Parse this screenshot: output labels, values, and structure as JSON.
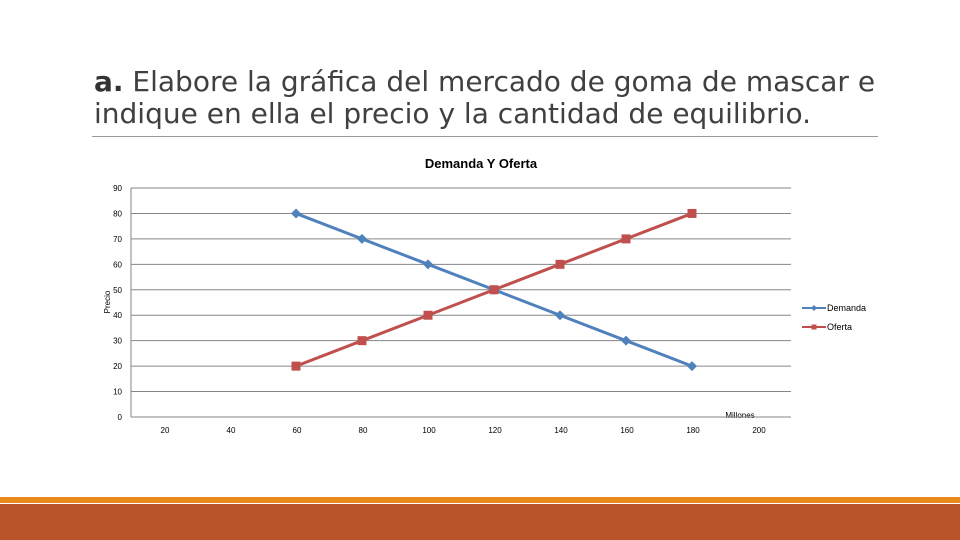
{
  "slide": {
    "title_lead": "a.",
    "title_rest": " Elabore la gráfica del mercado de goma de mascar e indique en ella el precio y la cantidad de equilibrio."
  },
  "colors": {
    "demanda": "#4f81bd",
    "oferta": "#c0504d",
    "footer_band": "#b8532a",
    "footer_line": "#e8891a",
    "grid": "#868686"
  },
  "chart_data": {
    "type": "line",
    "title": "Demanda Y Oferta",
    "ylabel": "Precio",
    "xlabel": "Millones",
    "x_ticks": [
      "20",
      "40",
      "60",
      "80",
      "100",
      "120",
      "140",
      "160",
      "180",
      "200"
    ],
    "y_ticks": [
      "0",
      "10",
      "20",
      "30",
      "40",
      "50",
      "60",
      "70",
      "80",
      "90"
    ],
    "xlim": [
      10,
      210
    ],
    "ylim": [
      0,
      90
    ],
    "grid": true,
    "legend": "right",
    "series": [
      {
        "name": "Demanda",
        "marker": "diamond",
        "x": [
          60,
          80,
          100,
          120,
          140,
          160,
          180
        ],
        "y": [
          80,
          70,
          60,
          50,
          40,
          30,
          20
        ]
      },
      {
        "name": "Oferta",
        "marker": "square",
        "x": [
          60,
          80,
          100,
          120,
          140,
          160,
          180
        ],
        "y": [
          20,
          30,
          40,
          50,
          60,
          70,
          80
        ]
      }
    ]
  }
}
